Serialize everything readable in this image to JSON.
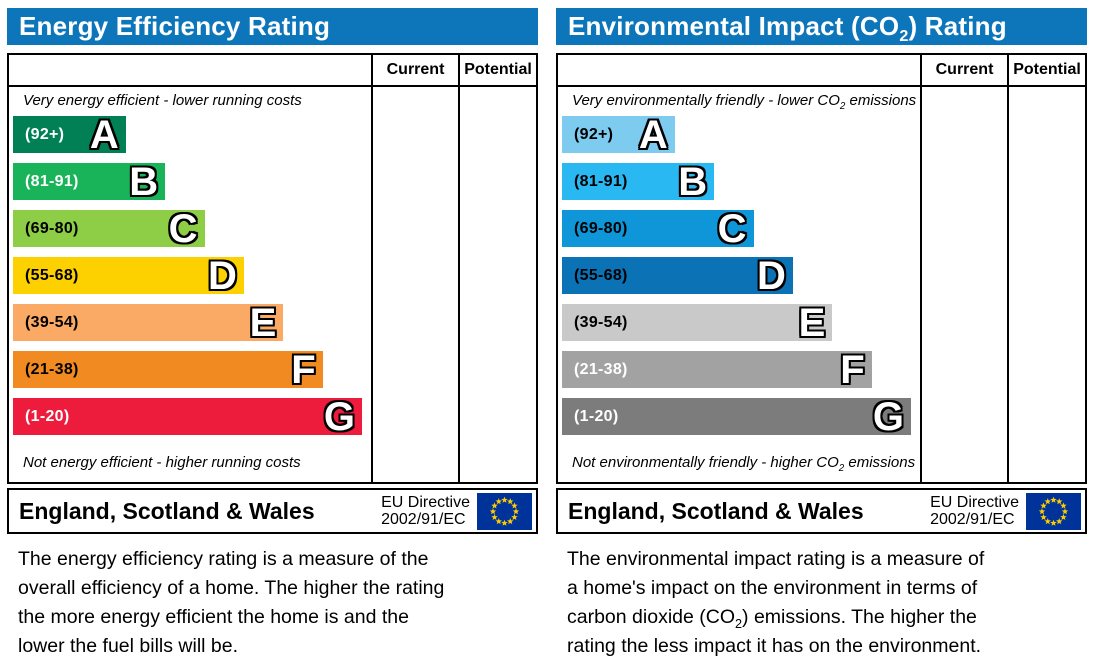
{
  "colors": {
    "header_background": "#0d76bb",
    "header_text": "#ffffff",
    "border": "#000000",
    "eu_flag_field": "#003399",
    "eu_flag_stars": "#ffcc00"
  },
  "chart_data": [
    {
      "type": "bar",
      "id": "energy-efficiency-rating",
      "title_pre": "Energy Efficiency Rating",
      "title_sub": "",
      "title_post": "",
      "columns": [
        "Current",
        "Potential"
      ],
      "current_value": "",
      "potential_value": "",
      "top_caption_pre": "Very energy efficient - lower running costs",
      "top_caption_sub": "",
      "top_caption_post": "",
      "bottom_caption_pre": "Not energy efficient - higher running costs",
      "bottom_caption_sub": "",
      "bottom_caption_post": "",
      "bands": [
        {
          "letter": "A",
          "range": "(92+)",
          "score_min": 92,
          "score_max": 100,
          "width_pct": 31.5,
          "color": "#008054",
          "range_text_color": "#ffffff"
        },
        {
          "letter": "B",
          "range": "(81-91)",
          "score_min": 81,
          "score_max": 91,
          "width_pct": 42.5,
          "color": "#19b459",
          "range_text_color": "#ffffff"
        },
        {
          "letter": "C",
          "range": "(69-80)",
          "score_min": 69,
          "score_max": 80,
          "width_pct": 53.5,
          "color": "#8dce46",
          "range_text_color": "#000000"
        },
        {
          "letter": "D",
          "range": "(55-68)",
          "score_min": 55,
          "score_max": 68,
          "width_pct": 64.5,
          "color": "#fdd000",
          "range_text_color": "#000000"
        },
        {
          "letter": "E",
          "range": "(39-54)",
          "score_min": 39,
          "score_max": 54,
          "width_pct": 75.5,
          "color": "#fbaa65",
          "range_text_color": "#000000"
        },
        {
          "letter": "F",
          "range": "(21-38)",
          "score_min": 21,
          "score_max": 38,
          "width_pct": 86.5,
          "color": "#f18b21",
          "range_text_color": "#000000"
        },
        {
          "letter": "G",
          "range": "(1-20)",
          "score_min": 1,
          "score_max": 20,
          "width_pct": 97.5,
          "color": "#ed1b3c",
          "range_text_color": "#ffffff"
        }
      ],
      "footer": {
        "region": "England, Scotland & Wales",
        "directive_line1": "EU Directive",
        "directive_line2": "2002/91/EC"
      },
      "description_lines": [
        {
          "pre": "The energy efficiency rating is a measure of the",
          "sub": "",
          "post": ""
        },
        {
          "pre": "overall efficiency of a home. The higher the rating",
          "sub": "",
          "post": ""
        },
        {
          "pre": "the more energy efficient the home is and the",
          "sub": "",
          "post": ""
        },
        {
          "pre": "lower the fuel bills will be.",
          "sub": "",
          "post": ""
        }
      ]
    },
    {
      "type": "bar",
      "id": "environmental-impact-co2-rating",
      "title_pre": "Environmental Impact (CO",
      "title_sub": "2",
      "title_post": ") Rating",
      "columns": [
        "Current",
        "Potential"
      ],
      "current_value": "",
      "potential_value": "",
      "top_caption_pre": "Very environmentally friendly - lower CO",
      "top_caption_sub": "2",
      "top_caption_post": " emissions",
      "bottom_caption_pre": "Not environmentally friendly - higher CO",
      "bottom_caption_sub": "2",
      "bottom_caption_post": " emissions",
      "bands": [
        {
          "letter": "A",
          "range": "(92+)",
          "score_min": 92,
          "score_max": 100,
          "width_pct": 31.5,
          "color": "#7ecbf0",
          "range_text_color": "#000000"
        },
        {
          "letter": "B",
          "range": "(81-91)",
          "score_min": 81,
          "score_max": 91,
          "width_pct": 42.5,
          "color": "#29b8f2",
          "range_text_color": "#000000"
        },
        {
          "letter": "C",
          "range": "(69-80)",
          "score_min": 69,
          "score_max": 80,
          "width_pct": 53.5,
          "color": "#0e96d8",
          "range_text_color": "#000000"
        },
        {
          "letter": "D",
          "range": "(55-68)",
          "score_min": 55,
          "score_max": 68,
          "width_pct": 64.5,
          "color": "#0b72b5",
          "range_text_color": "#000000"
        },
        {
          "letter": "E",
          "range": "(39-54)",
          "score_min": 39,
          "score_max": 54,
          "width_pct": 75.5,
          "color": "#c9c9c9",
          "range_text_color": "#000000"
        },
        {
          "letter": "F",
          "range": "(21-38)",
          "score_min": 21,
          "score_max": 38,
          "width_pct": 86.5,
          "color": "#a2a2a2",
          "range_text_color": "#ffffff"
        },
        {
          "letter": "G",
          "range": "(1-20)",
          "score_min": 1,
          "score_max": 20,
          "width_pct": 97.5,
          "color": "#7c7c7c",
          "range_text_color": "#ffffff"
        }
      ],
      "footer": {
        "region": "England, Scotland & Wales",
        "directive_line1": "EU Directive",
        "directive_line2": "2002/91/EC"
      },
      "description_lines": [
        {
          "pre": "The environmental impact rating is a measure of",
          "sub": "",
          "post": ""
        },
        {
          "pre": "a home's impact on the environment in terms of",
          "sub": "",
          "post": ""
        },
        {
          "pre": "carbon dioxide (CO",
          "sub": "2",
          "post": ") emissions. The higher the"
        },
        {
          "pre": "rating the less impact it has on the environment.",
          "sub": "",
          "post": ""
        }
      ]
    }
  ]
}
